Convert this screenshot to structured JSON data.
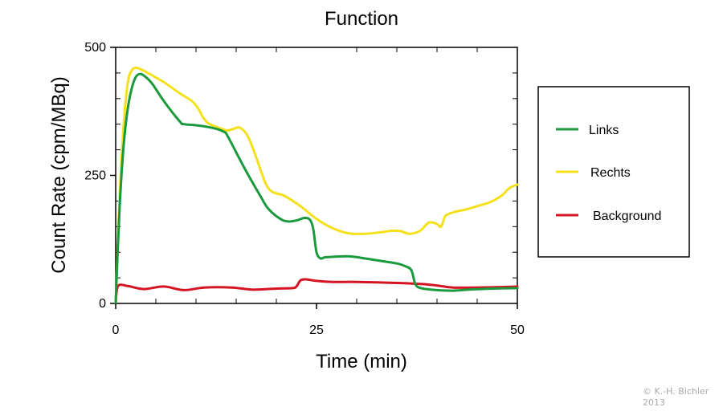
{
  "chart_data": {
    "type": "line",
    "title": "Function",
    "xlabel": "Time (min)",
    "ylabel": "Count Rate (cpm/MBq)",
    "xlim": [
      0,
      50
    ],
    "ylim": [
      0,
      500
    ],
    "xticks": [
      0,
      25,
      50
    ],
    "yticks": [
      0,
      250,
      500
    ],
    "x_tick_labels": [
      "0",
      "25",
      "50"
    ],
    "y_tick_labels": [
      "0",
      "250",
      "500"
    ],
    "grid": false,
    "legend_position": "right",
    "series": [
      {
        "name": "Links",
        "color": "#1a9a3c",
        "x": [
          0,
          0.5,
          1.0,
          1.5,
          2.0,
          2.5,
          3.0,
          3.5,
          4.5,
          6,
          8,
          8.5,
          10,
          12,
          13.5,
          14,
          16,
          18,
          19,
          20.5,
          21.5,
          22.5,
          23.5,
          24.2,
          24.6,
          25.0,
          25.5,
          26,
          27,
          29,
          31,
          33,
          35,
          36,
          36.8,
          37.3,
          38,
          40,
          42,
          44,
          47,
          50
        ],
        "y": [
          2,
          190,
          310,
          380,
          420,
          442,
          448,
          445,
          430,
          395,
          355,
          350,
          348,
          343,
          335,
          325,
          265,
          210,
          185,
          165,
          160,
          162,
          167,
          163,
          145,
          100,
          88,
          90,
          91,
          92,
          88,
          83,
          78,
          73,
          65,
          38,
          30,
          26,
          25,
          27,
          29,
          30
        ]
      },
      {
        "name": "Rechts",
        "color": "#f5e01c",
        "x": [
          0,
          0.5,
          1.0,
          1.5,
          2.0,
          2.5,
          3.0,
          4,
          6,
          8,
          9.5,
          10.3,
          10.8,
          11.5,
          12.5,
          13.8,
          14.5,
          15.5,
          16.5,
          17.5,
          19,
          21,
          23,
          25,
          27,
          29,
          31,
          33,
          34.5,
          35.5,
          36.5,
          37.3,
          38,
          39,
          40,
          40.5,
          41,
          41.5,
          42.5,
          43.5,
          45,
          46.5,
          48,
          49,
          50
        ],
        "y": [
          2,
          210,
          350,
          430,
          455,
          460,
          458,
          450,
          432,
          410,
          395,
          380,
          365,
          352,
          345,
          338,
          340,
          343,
          325,
          285,
          225,
          210,
          190,
          165,
          147,
          137,
          136,
          139,
          142,
          141,
          136,
          138,
          143,
          158,
          155,
          150,
          170,
          175,
          180,
          183,
          190,
          197,
          210,
          225,
          232
        ]
      },
      {
        "name": "Background",
        "color": "#d41422",
        "x": [
          0,
          0.3,
          1.5,
          3.5,
          6,
          8.5,
          11,
          14.5,
          17,
          20,
          22,
          22.5,
          23,
          23.7,
          25,
          27,
          30,
          35,
          38,
          40,
          42,
          45,
          48,
          50
        ],
        "y": [
          2,
          34,
          34,
          28,
          33,
          26,
          31,
          31,
          27,
          29,
          30,
          33,
          45,
          47,
          44,
          42,
          42,
          40,
          38,
          35,
          31,
          31,
          32,
          33
        ]
      }
    ]
  },
  "copyright": {
    "line1": "© K.-H. Bichler",
    "line2": "2013"
  }
}
